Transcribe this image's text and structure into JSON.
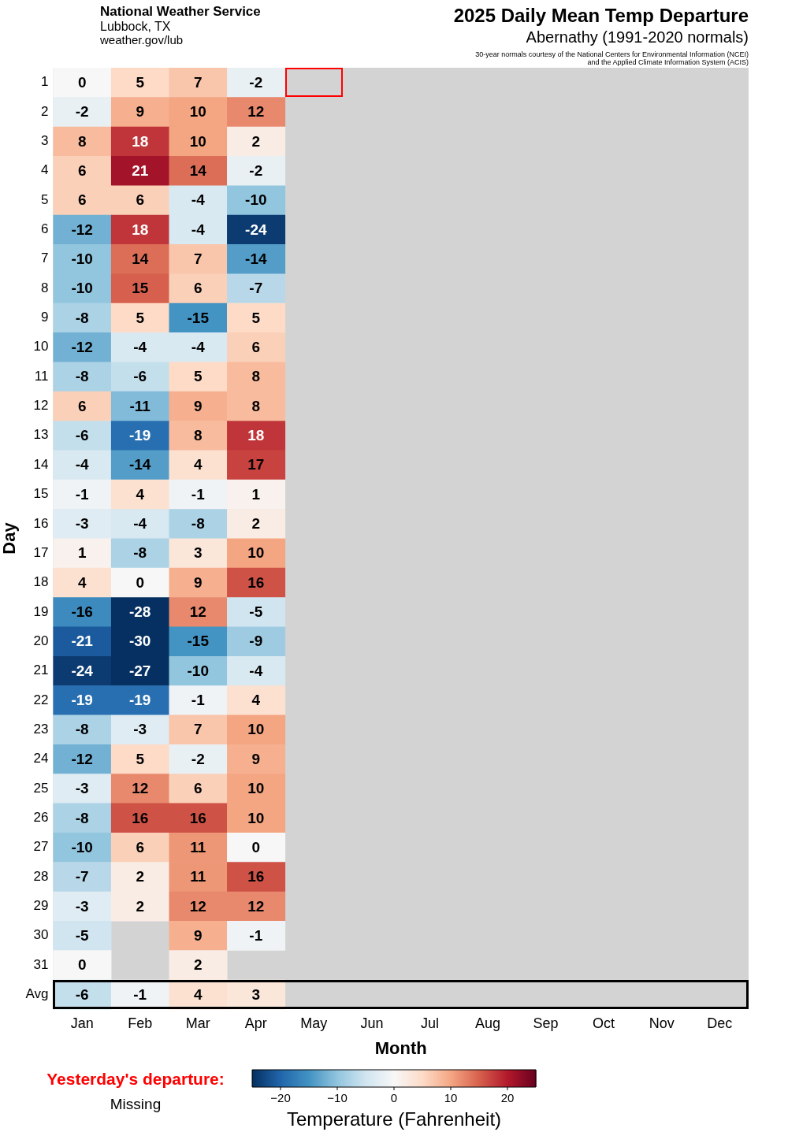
{
  "chart_data": {
    "type": "heatmap",
    "title": "2025 Daily Mean Temp Departure",
    "subtitle": "Abernathy (1991-2020 normals)",
    "xlabel": "Month",
    "ylabel": "Day",
    "clabel": "Temperature (Fahrenheit)",
    "annotations": [
      "National Weather Service",
      "Lubbock, TX",
      "weather.gov/lub",
      "30-year normals courtesy of the National Centers for Environmental Information (NCEI)",
      "and the Applied Climate Information System (ACIS)",
      "Yesterday's departure:",
      "Missing"
    ],
    "categories": [
      "Jan",
      "Feb",
      "Mar",
      "Apr",
      "May",
      "Jun",
      "Jul",
      "Aug",
      "Sep",
      "Oct",
      "Nov",
      "Dec"
    ],
    "y_categories": [
      "1",
      "2",
      "3",
      "4",
      "5",
      "6",
      "7",
      "8",
      "9",
      "10",
      "11",
      "12",
      "13",
      "14",
      "15",
      "16",
      "17",
      "18",
      "19",
      "20",
      "21",
      "22",
      "23",
      "24",
      "25",
      "26",
      "27",
      "28",
      "29",
      "30",
      "31",
      "Avg"
    ],
    "cells": [
      [
        0,
        5,
        7,
        -2,
        null,
        null,
        null,
        null,
        null,
        null,
        null,
        null
      ],
      [
        -2,
        9,
        10,
        12,
        null,
        null,
        null,
        null,
        null,
        null,
        null,
        null
      ],
      [
        8,
        18,
        10,
        2,
        null,
        null,
        null,
        null,
        null,
        null,
        null,
        null
      ],
      [
        6,
        21,
        14,
        -2,
        null,
        null,
        null,
        null,
        null,
        null,
        null,
        null
      ],
      [
        6,
        6,
        -4,
        -10,
        null,
        null,
        null,
        null,
        null,
        null,
        null,
        null
      ],
      [
        -12,
        18,
        -4,
        -24,
        null,
        null,
        null,
        null,
        null,
        null,
        null,
        null
      ],
      [
        -10,
        14,
        7,
        -14,
        null,
        null,
        null,
        null,
        null,
        null,
        null,
        null
      ],
      [
        -10,
        15,
        6,
        -7,
        null,
        null,
        null,
        null,
        null,
        null,
        null,
        null
      ],
      [
        -8,
        5,
        -15,
        5,
        null,
        null,
        null,
        null,
        null,
        null,
        null,
        null
      ],
      [
        -12,
        -4,
        -4,
        6,
        null,
        null,
        null,
        null,
        null,
        null,
        null,
        null
      ],
      [
        -8,
        -6,
        5,
        8,
        null,
        null,
        null,
        null,
        null,
        null,
        null,
        null
      ],
      [
        6,
        -11,
        9,
        8,
        null,
        null,
        null,
        null,
        null,
        null,
        null,
        null
      ],
      [
        -6,
        -19,
        8,
        18,
        null,
        null,
        null,
        null,
        null,
        null,
        null,
        null
      ],
      [
        -4,
        -14,
        4,
        17,
        null,
        null,
        null,
        null,
        null,
        null,
        null,
        null
      ],
      [
        -1,
        4,
        -1,
        1,
        null,
        null,
        null,
        null,
        null,
        null,
        null,
        null
      ],
      [
        -3,
        -4,
        -8,
        2,
        null,
        null,
        null,
        null,
        null,
        null,
        null,
        null
      ],
      [
        1,
        -8,
        3,
        10,
        null,
        null,
        null,
        null,
        null,
        null,
        null,
        null
      ],
      [
        4,
        0,
        9,
        16,
        null,
        null,
        null,
        null,
        null,
        null,
        null,
        null
      ],
      [
        -16,
        -28,
        12,
        -5,
        null,
        null,
        null,
        null,
        null,
        null,
        null,
        null
      ],
      [
        -21,
        -30,
        -15,
        -9,
        null,
        null,
        null,
        null,
        null,
        null,
        null,
        null
      ],
      [
        -24,
        -27,
        -10,
        -4,
        null,
        null,
        null,
        null,
        null,
        null,
        null,
        null
      ],
      [
        -19,
        -19,
        -1,
        4,
        null,
        null,
        null,
        null,
        null,
        null,
        null,
        null
      ],
      [
        -8,
        -3,
        7,
        10,
        null,
        null,
        null,
        null,
        null,
        null,
        null,
        null
      ],
      [
        -12,
        5,
        -2,
        9,
        null,
        null,
        null,
        null,
        null,
        null,
        null,
        null
      ],
      [
        -3,
        12,
        6,
        10,
        null,
        null,
        null,
        null,
        null,
        null,
        null,
        null
      ],
      [
        -8,
        16,
        16,
        10,
        null,
        null,
        null,
        null,
        null,
        null,
        null,
        null
      ],
      [
        -10,
        6,
        11,
        0,
        null,
        null,
        null,
        null,
        null,
        null,
        null,
        null
      ],
      [
        -7,
        2,
        11,
        16,
        null,
        null,
        null,
        null,
        null,
        null,
        null,
        null
      ],
      [
        -3,
        2,
        12,
        12,
        null,
        null,
        null,
        null,
        null,
        null,
        null,
        null
      ],
      [
        -5,
        null,
        9,
        -1,
        null,
        null,
        null,
        null,
        null,
        null,
        null,
        null
      ],
      [
        0,
        null,
        2,
        null,
        null,
        null,
        null,
        null,
        null,
        null,
        null,
        null
      ],
      [
        -6,
        -1,
        4,
        3,
        null,
        null,
        null,
        null,
        null,
        null,
        null,
        null
      ]
    ],
    "data_labels": true,
    "clim": [
      -25,
      25
    ],
    "cticks": [
      -20,
      -10,
      0,
      10,
      20
    ]
  }
}
